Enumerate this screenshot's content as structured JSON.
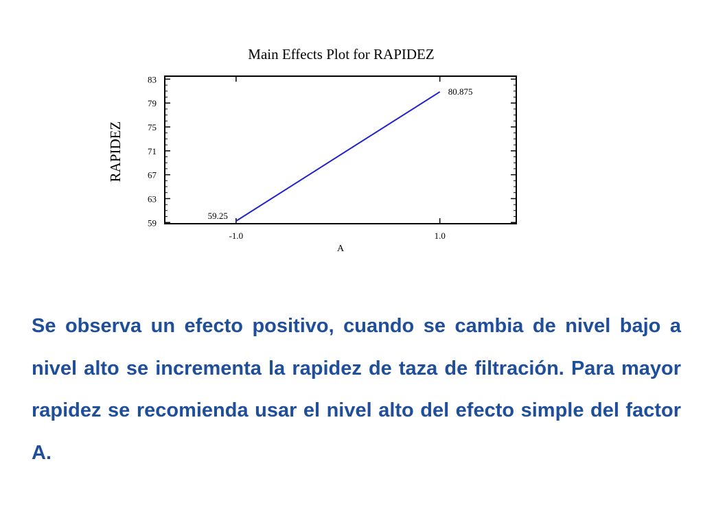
{
  "chart_data": {
    "type": "line",
    "title": "Main Effects Plot for RAPIDEZ",
    "xlabel": "A",
    "ylabel": "RAPIDEZ",
    "x": [
      -1.0,
      1.0
    ],
    "x_ticks": [
      "-1.0",
      "1.0"
    ],
    "xlim": [
      -1.7,
      1.75
    ],
    "ylim": [
      58.8,
      83.5
    ],
    "y_ticks": [
      59,
      63,
      67,
      71,
      75,
      79,
      83
    ],
    "series": [
      {
        "values": [
          59.25,
          80.875
        ],
        "point_labels": [
          "59.25",
          "80.875"
        ]
      }
    ],
    "line_color": "#2222cc",
    "grid": false
  },
  "description": {
    "text": "Se observa un efecto positivo, cuando se cambia de nivel bajo a nivel alto se incrementa la rapidez de taza de filtración. Para mayor rapidez se recomienda usar el nivel alto del efecto simple del factor A."
  }
}
